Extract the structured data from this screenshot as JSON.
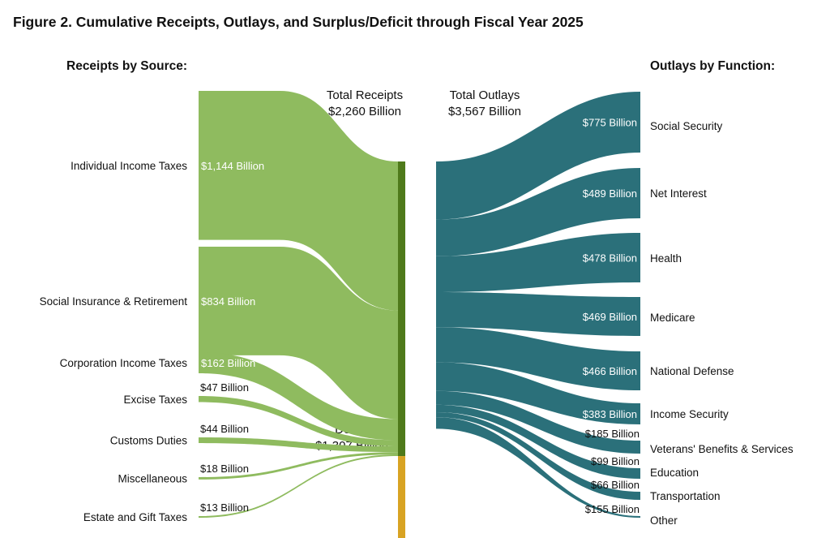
{
  "chart_data": {
    "type": "sankey",
    "title": "Figure 2. Cumulative Receipts, Outlays, and Surplus/Deficit through Fiscal Year 2025",
    "receipts_heading": "Receipts by Source:",
    "outlays_heading": "Outlays by Function:",
    "total_receipts": {
      "label": "Total Receipts",
      "value_label": "$2,260 Billion",
      "value": 2260
    },
    "total_outlays": {
      "label": "Total Outlays",
      "value_label": "$3,567 Billion",
      "value": 3567
    },
    "deficit": {
      "label": "Deficit",
      "value_label": "$1,307 Billion",
      "value": 1307
    },
    "receipts": [
      {
        "name": "Individual Income Taxes",
        "value": 1144,
        "value_label": "$1,144 Billion"
      },
      {
        "name": "Social Insurance & Retirement",
        "value": 834,
        "value_label": "$834 Billion"
      },
      {
        "name": "Corporation Income Taxes",
        "value": 162,
        "value_label": "$162 Billion"
      },
      {
        "name": "Excise Taxes",
        "value": 47,
        "value_label": "$47 Billion"
      },
      {
        "name": "Customs Duties",
        "value": 44,
        "value_label": "$44 Billion"
      },
      {
        "name": "Miscellaneous",
        "value": 18,
        "value_label": "$18 Billion"
      },
      {
        "name": "Estate and Gift Taxes",
        "value": 13,
        "value_label": "$13 Billion"
      }
    ],
    "outlays": [
      {
        "name": "Social Security",
        "value": 775,
        "value_label": "$775 Billion"
      },
      {
        "name": "Net Interest",
        "value": 489,
        "value_label": "$489 Billion"
      },
      {
        "name": "Health",
        "value": 478,
        "value_label": "$478 Billion"
      },
      {
        "name": "Medicare",
        "value": 469,
        "value_label": "$469 Billion"
      },
      {
        "name": "National Defense",
        "value": 466,
        "value_label": "$466 Billion"
      },
      {
        "name": "Income Security",
        "value": 383,
        "value_label": "$383 Billion"
      },
      {
        "name": "Veterans' Benefits & Services",
        "value": 185,
        "value_label": "$185 Billion"
      },
      {
        "name": "Education",
        "value": 99,
        "value_label": "$99 Billion"
      },
      {
        "name": "Transportation",
        "value": 66,
        "value_label": "$66 Billion"
      },
      {
        "name": "Other",
        "value": 155,
        "value_label": "$155 Billion"
      }
    ],
    "colors": {
      "receipts_flow": "#8fbb5f",
      "receipts_bar": "#4f7a1b",
      "deficit_bar": "#d8a323",
      "outlays_flow": "#2b707a"
    }
  }
}
